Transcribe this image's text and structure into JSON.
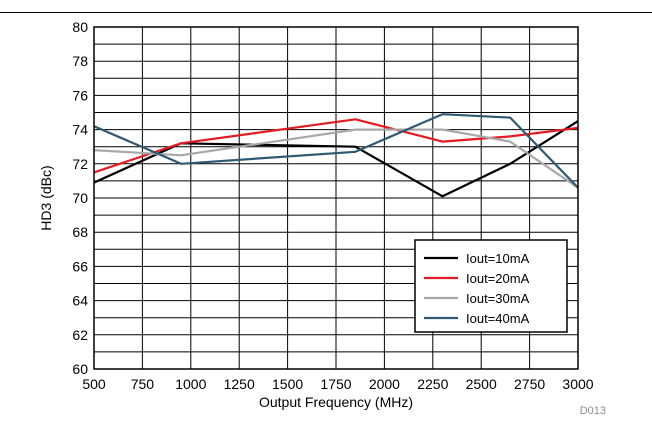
{
  "chart_data": {
    "type": "line",
    "xlabel": "Output Frequency (MHz)",
    "ylabel": "HD3 (dBc)",
    "xlim": [
      500,
      3000
    ],
    "ylim": [
      60,
      80
    ],
    "xticks": [
      500,
      750,
      1000,
      1250,
      1500,
      1750,
      2000,
      2250,
      2500,
      2750,
      3000
    ],
    "yticks": [
      60,
      62,
      64,
      66,
      68,
      70,
      72,
      74,
      76,
      78,
      80
    ],
    "minor_y_step": 1,
    "grid": true,
    "legend_position": "lower-right",
    "figure_id": "D013",
    "series": [
      {
        "name": "Iout=10mA",
        "color": "#000000",
        "x": [
          500,
          950,
          1850,
          2300,
          2650,
          3000
        ],
        "y": [
          70.9,
          73.2,
          73.0,
          70.1,
          72.0,
          74.5
        ]
      },
      {
        "name": "Iout=20mA",
        "color": "#e31b23",
        "x": [
          500,
          950,
          1850,
          2300,
          2650,
          3000
        ],
        "y": [
          71.5,
          73.2,
          74.6,
          73.3,
          73.6,
          74.1
        ]
      },
      {
        "name": "Iout=30mA",
        "color": "#a8a8a8",
        "x": [
          500,
          950,
          1850,
          2300,
          2650,
          3000
        ],
        "y": [
          72.8,
          72.5,
          74.0,
          74.0,
          73.3,
          70.6
        ]
      },
      {
        "name": "Iout=40mA",
        "color": "#2e5a73",
        "x": [
          500,
          950,
          1850,
          2300,
          2650,
          3000
        ],
        "y": [
          74.2,
          72.0,
          72.7,
          74.9,
          74.7,
          70.6
        ]
      }
    ]
  }
}
